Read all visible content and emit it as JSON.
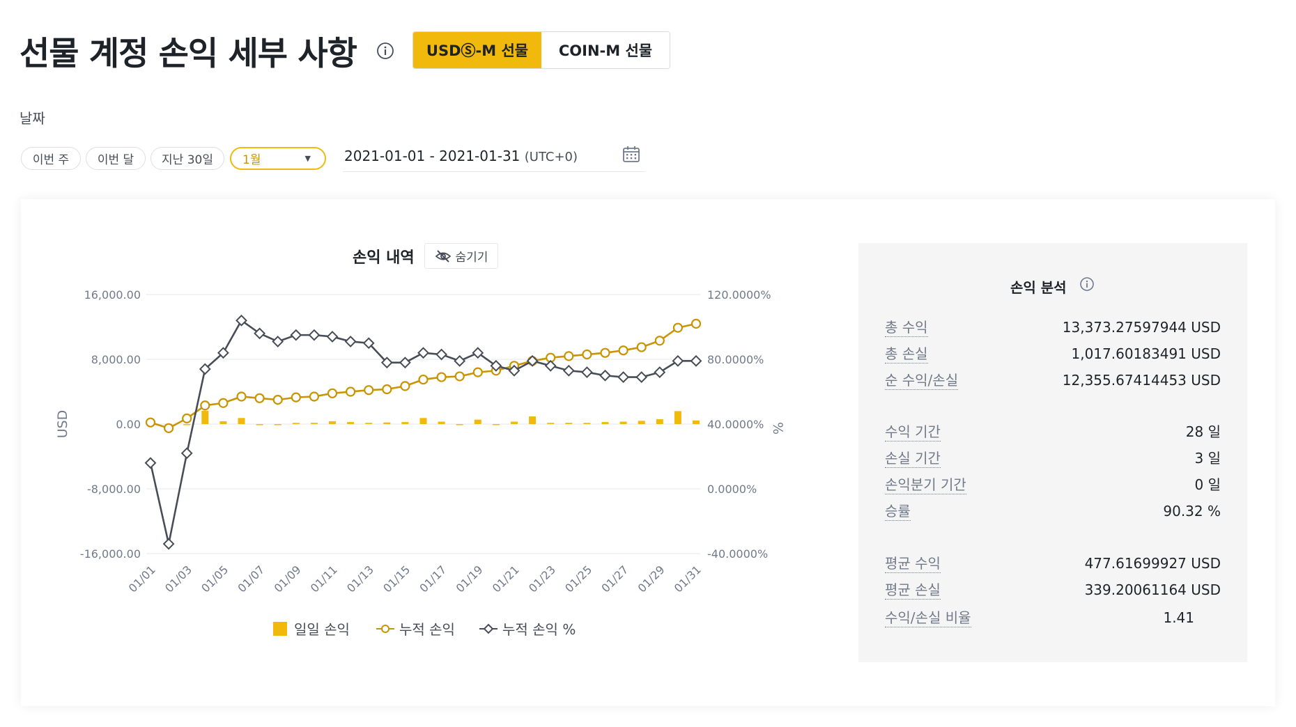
{
  "header": {
    "title": "선물 계정 손익 세부 사항",
    "tabs": [
      {
        "label": "USDⓈ-M 선물",
        "active": true
      },
      {
        "label": "COIN-M 선물",
        "active": false
      }
    ]
  },
  "date_filter": {
    "label": "날짜",
    "quick": [
      "이번 주",
      "이번 달",
      "지난 30일"
    ],
    "month_select": "1월",
    "range": "2021-01-01 - 2021-01-31",
    "timezone": "(UTC+0)"
  },
  "chart_section": {
    "title": "손익 내역",
    "hide_label": "숨기기"
  },
  "chart_data": {
    "type": "line",
    "title": "손익 내역",
    "xlabel": "",
    "ylabel": "USD",
    "y2label": "%",
    "ylim": [
      -16000,
      16000
    ],
    "y2lim": [
      -40,
      120
    ],
    "y_ticks": [
      "16,000.00",
      "8,000.00",
      "0.00",
      "-8,000.00",
      "-16,000.00"
    ],
    "y2_ticks": [
      "120.0000%",
      "80.0000%",
      "40.0000%",
      "0.0000%",
      "-40.0000%"
    ],
    "x_tick_labels": [
      "01/01",
      "01/03",
      "01/05",
      "01/07",
      "01/09",
      "01/11",
      "01/13",
      "01/15",
      "01/17",
      "01/19",
      "01/21",
      "01/23",
      "01/25",
      "01/27",
      "01/29",
      "01/31"
    ],
    "categories": [
      "01/01",
      "01/02",
      "01/03",
      "01/04",
      "01/05",
      "01/06",
      "01/07",
      "01/08",
      "01/09",
      "01/10",
      "01/11",
      "01/12",
      "01/13",
      "01/14",
      "01/15",
      "01/16",
      "01/17",
      "01/18",
      "01/19",
      "01/20",
      "01/21",
      "01/22",
      "01/23",
      "01/24",
      "01/25",
      "01/26",
      "01/27",
      "01/28",
      "01/29",
      "01/30",
      "01/31"
    ],
    "legend_position": "bottom",
    "grid": true,
    "series": [
      {
        "name": "일일 손익",
        "kind": "bar",
        "axis": "left",
        "color": "#f0b90b",
        "values": [
          0,
          -600,
          0,
          1650,
          350,
          750,
          0,
          0,
          150,
          150,
          350,
          250,
          150,
          200,
          250,
          750,
          300,
          0,
          550,
          0,
          300,
          950,
          150,
          150,
          150,
          250,
          300,
          400,
          600,
          1600,
          450
        ]
      },
      {
        "name": "누적 손익",
        "kind": "line",
        "axis": "left",
        "color": "#c99400",
        "values": [
          200,
          -500,
          700,
          2300,
          2600,
          3400,
          3200,
          3000,
          3300,
          3400,
          3800,
          4000,
          4200,
          4300,
          4700,
          5500,
          5800,
          5900,
          6400,
          6600,
          7200,
          7800,
          8200,
          8400,
          8600,
          8800,
          9100,
          9500,
          10300,
          11900,
          12400
        ]
      },
      {
        "name": "누적 손익 %",
        "kind": "line",
        "axis": "right",
        "color": "#474d57",
        "values": [
          16,
          -34,
          22,
          74,
          84,
          104,
          96,
          91,
          95,
          95,
          94,
          91,
          90,
          78,
          78,
          84,
          83,
          79,
          84,
          76,
          73,
          79,
          76,
          73,
          72,
          70,
          69,
          69,
          72,
          79,
          79
        ]
      }
    ]
  },
  "analysis": {
    "title": "손익 분석",
    "rows": [
      {
        "key": "총 수익",
        "value": "13,373.27597944 USD"
      },
      {
        "key": "총 손실",
        "value": "1,017.60183491 USD"
      },
      {
        "key": "순 수익/손실",
        "value": "12,355.67414453 USD"
      },
      {
        "key": "수익 기간",
        "value": "28 일"
      },
      {
        "key": "손실 기간",
        "value": "3 일"
      },
      {
        "key": "손익분기 기간",
        "value": "0 일"
      },
      {
        "key": "승률",
        "value": "90.32 %"
      },
      {
        "key": "평균 수익",
        "value": "477.61699927 USD"
      },
      {
        "key": "평균 손실",
        "value": "339.20061164 USD"
      },
      {
        "key": "수익/손실 비율",
        "value": "1.41"
      }
    ]
  },
  "colors": {
    "accent": "#f0b90b",
    "accent_dark": "#c99400",
    "text_primary": "#1e2329",
    "text_secondary": "#707a8a",
    "series_dark": "#474d57"
  }
}
